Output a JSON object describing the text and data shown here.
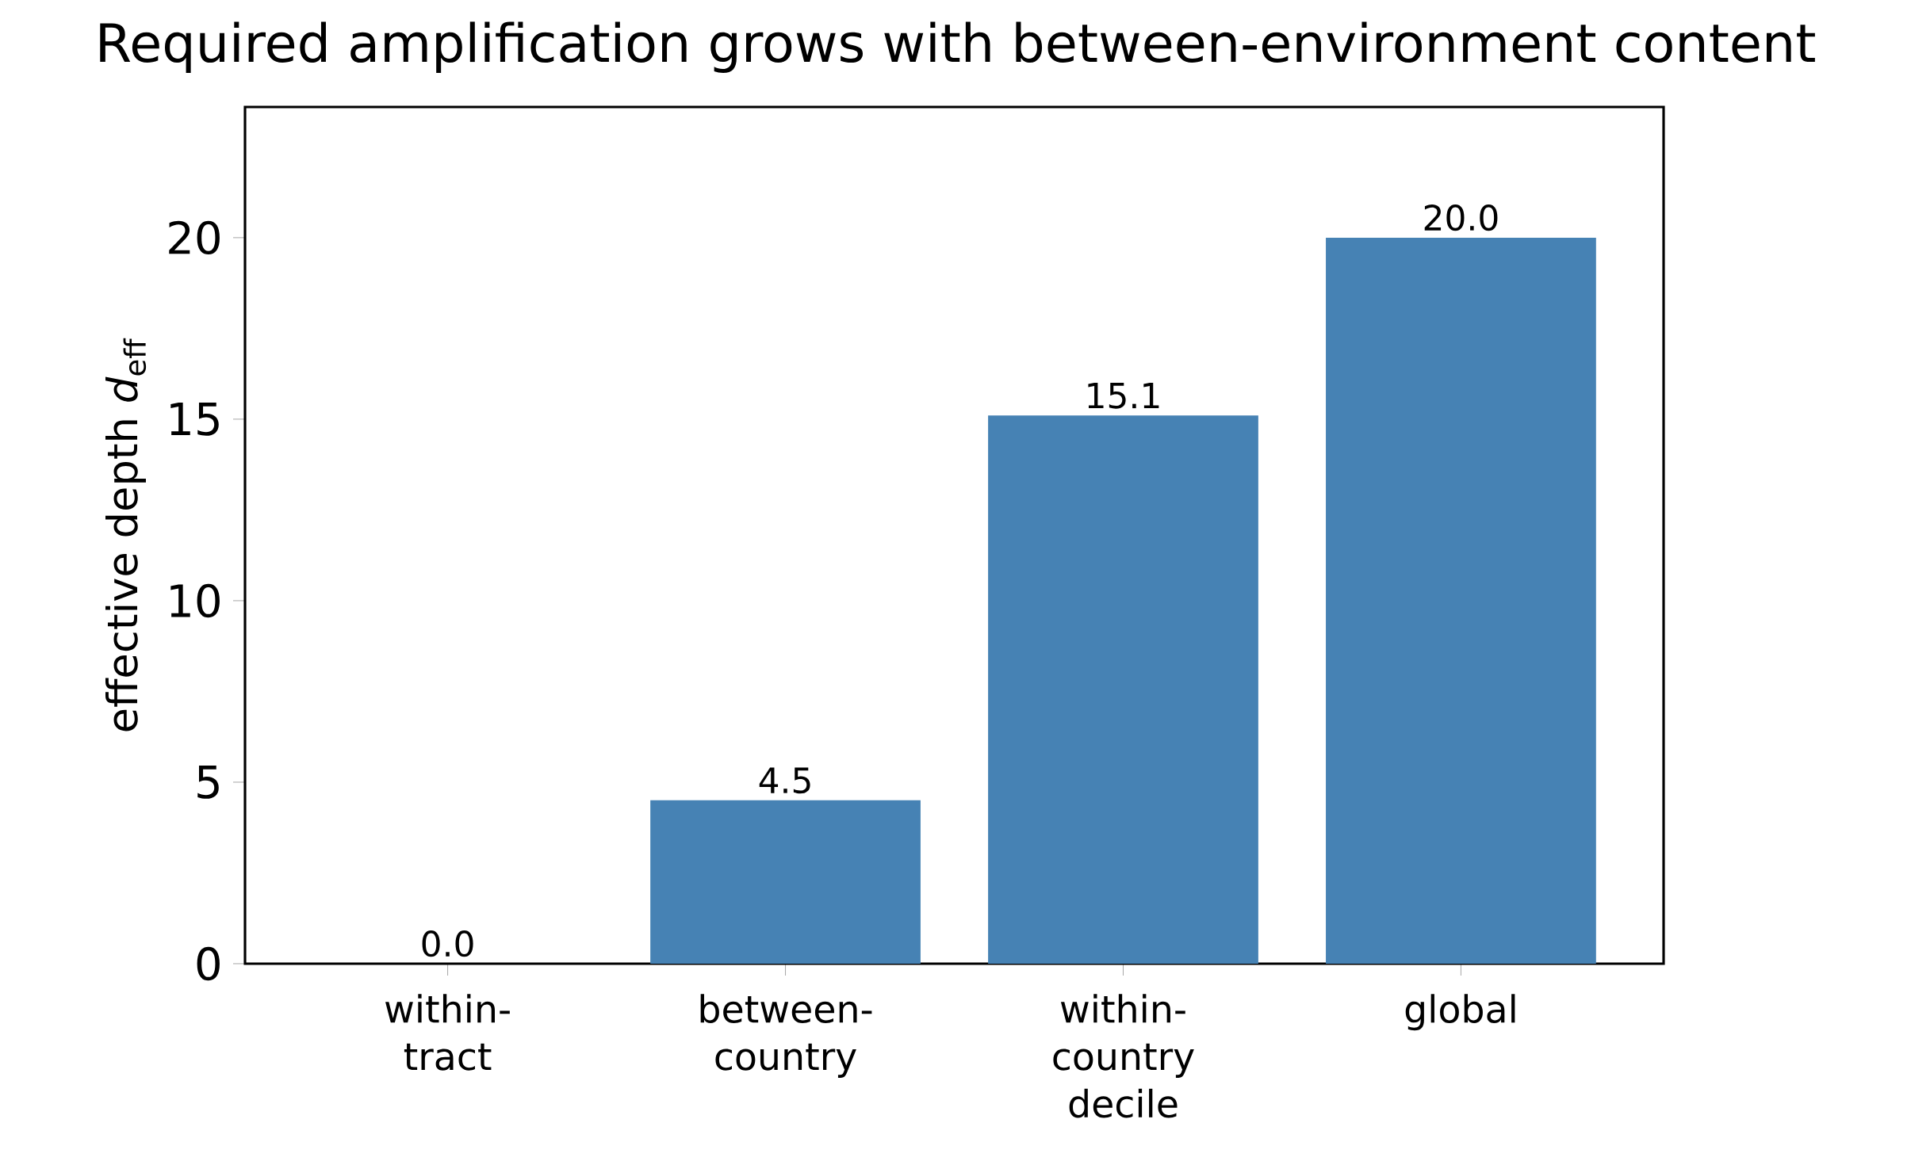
{
  "chart_data": {
    "type": "bar",
    "title": "Required amplification grows with between-environment content",
    "ylabel": "effective depth *d*$_{eff}$",
    "categories": [
      "within-tract",
      "between-country",
      "within-country decile",
      "global"
    ],
    "values": [
      0.0,
      4.5,
      15.1,
      20.0
    ],
    "value_labels": [
      "0.0",
      "4.5",
      "15.1",
      "20.0"
    ],
    "color": "#4682b4",
    "ylim": [
      0,
      23.6
    ],
    "yticks": [
      0,
      5,
      10,
      15,
      20
    ],
    "grid": false
  }
}
